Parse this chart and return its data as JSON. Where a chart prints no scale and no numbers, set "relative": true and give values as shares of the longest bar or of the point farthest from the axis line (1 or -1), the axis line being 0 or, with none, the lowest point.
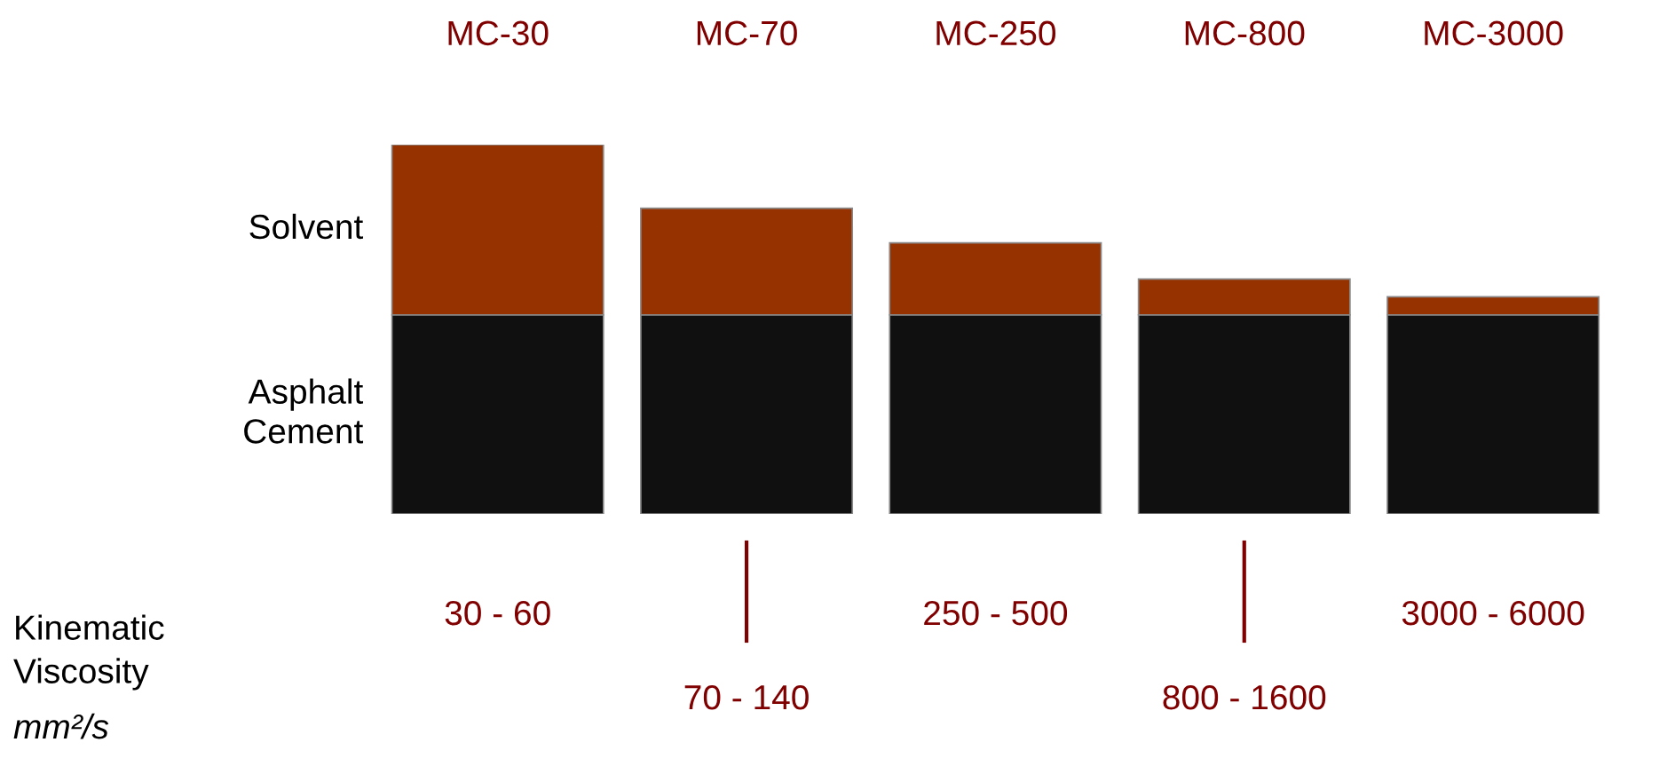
{
  "chart_data": {
    "type": "bar",
    "stacked": true,
    "relative": true,
    "categories": [
      "MC-30",
      "MC-70",
      "MC-250",
      "MC-800",
      "MC-3000"
    ],
    "series": [
      {
        "name": "Asphalt Cement",
        "color": "#101010",
        "values": [
          0.539,
          0.539,
          0.539,
          0.539,
          0.539
        ]
      },
      {
        "name": "Solvent",
        "color": "#963200",
        "values": [
          0.461,
          0.289,
          0.195,
          0.097,
          0.049
        ]
      }
    ],
    "annotations": [
      "Kinematic\nViscosity",
      "mm²/s",
      "30 - 60",
      "70 - 140",
      "250 - 500",
      "800 - 1600",
      "3000 - 6000"
    ],
    "grid": false,
    "legend": false
  }
}
